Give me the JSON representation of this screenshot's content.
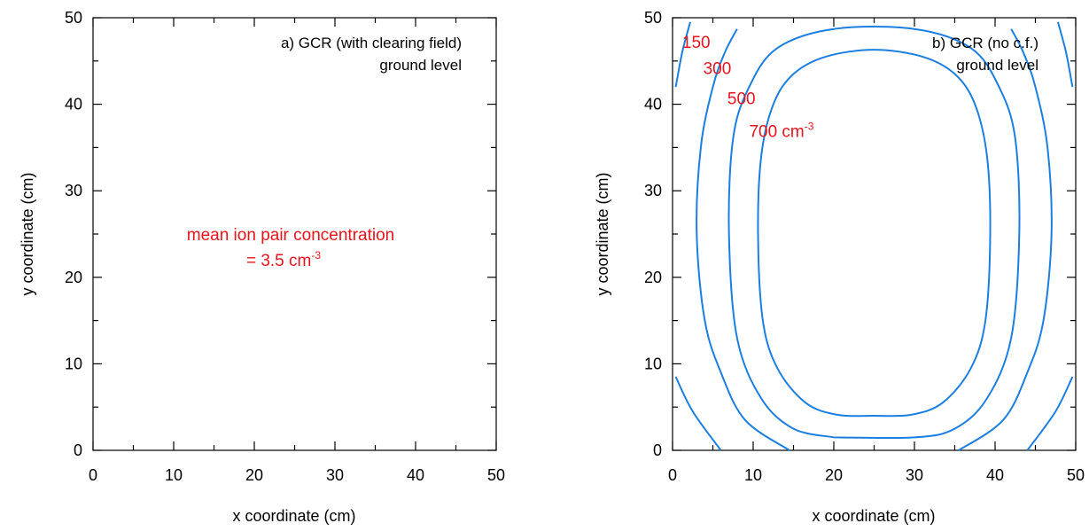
{
  "chart_data": [
    {
      "type": "contour",
      "xlabel": "x coordinate (cm)",
      "ylabel": "y coordinate (cm)",
      "xlim": [
        0,
        50
      ],
      "ylim": [
        0,
        50
      ],
      "xticks": [
        0,
        10,
        20,
        30,
        40,
        50
      ],
      "yticks": [
        0,
        10,
        20,
        30,
        40,
        50
      ],
      "title_lines": [
        "a) GCR (with clearing field)",
        "ground level"
      ],
      "annotation": {
        "line1": "mean ion pair concentration",
        "line2_prefix": "= 3.5 cm",
        "line2_sup": "-3"
      },
      "contours": []
    },
    {
      "type": "contour",
      "xlabel": "x coordinate (cm)",
      "ylabel": "y coordinate (cm)",
      "xlim": [
        0,
        50
      ],
      "ylim": [
        0,
        50
      ],
      "xticks": [
        0,
        10,
        20,
        30,
        40,
        50
      ],
      "yticks": [
        0,
        10,
        20,
        30,
        40,
        50
      ],
      "title_lines": [
        "b) GCR (no c.f.)",
        "ground level"
      ],
      "level_labels": [
        {
          "text": "150",
          "x": 1.2,
          "y": 46.5
        },
        {
          "text": "300",
          "x": 3.8,
          "y": 43.5
        },
        {
          "text": "500",
          "x": 6.8,
          "y": 40.0
        },
        {
          "text": "700 cm",
          "sup": "-3",
          "x": 9.5,
          "y": 36.2
        }
      ],
      "contour_color": "#1a7fe0",
      "contours": [
        {
          "level": 150,
          "points": [
            [
              0.4,
              42
            ],
            [
              1.2,
              46
            ],
            [
              2.2,
              49.5
            ]
          ]
        },
        {
          "level": 150,
          "points": [
            [
              47.8,
              49.5
            ],
            [
              48.8,
              46
            ],
            [
              49.6,
              42
            ]
          ]
        },
        {
          "level": 150,
          "points": [
            [
              0.4,
              8.5
            ],
            [
              2.5,
              4.5
            ],
            [
              6,
              0
            ]
          ]
        },
        {
          "level": 150,
          "points": [
            [
              44,
              0
            ],
            [
              47.5,
              4.5
            ],
            [
              49.6,
              8.5
            ]
          ]
        },
        {
          "level": 300,
          "points": [
            [
              14.5,
              0
            ],
            [
              9,
              3.5
            ],
            [
              6,
              9
            ],
            [
              4,
              15
            ],
            [
              3,
              25
            ],
            [
              3.5,
              35
            ],
            [
              5,
              42
            ],
            [
              6.5,
              46
            ],
            [
              8,
              48.7
            ]
          ]
        },
        {
          "level": 300,
          "points": [
            [
              35.5,
              0
            ],
            [
              41,
              3.5
            ],
            [
              44,
              9
            ],
            [
              46,
              15
            ],
            [
              47,
              25
            ],
            [
              46.5,
              35
            ],
            [
              45,
              42
            ],
            [
              43.5,
              46
            ],
            [
              42,
              48.7
            ]
          ]
        },
        {
          "level": 500,
          "points": [
            [
              20,
              1.5
            ],
            [
              30,
              1.5
            ],
            [
              35,
              2.5
            ],
            [
              39,
              6
            ],
            [
              42,
              13
            ],
            [
              43,
              25
            ],
            [
              42.5,
              36
            ],
            [
              40.5,
              42
            ],
            [
              37,
              46.5
            ],
            [
              30,
              48.7
            ],
            [
              20,
              48.7
            ],
            [
              13,
              46.5
            ],
            [
              9.5,
              42
            ],
            [
              7.5,
              36
            ],
            [
              7,
              25
            ],
            [
              8,
              13
            ],
            [
              11,
              6
            ],
            [
              15,
              2.5
            ],
            [
              20,
              1.5
            ]
          ]
        },
        {
          "level": 700,
          "points": [
            [
              25,
              4
            ],
            [
              29.5,
              4.1
            ],
            [
              33.5,
              5.5
            ],
            [
              37,
              9.5
            ],
            [
              38.8,
              15
            ],
            [
              39.4,
              25
            ],
            [
              39,
              34
            ],
            [
              37.5,
              40
            ],
            [
              35,
              43.5
            ],
            [
              31,
              45.5
            ],
            [
              25,
              46.3
            ],
            [
              19,
              45.5
            ],
            [
              15,
              43.5
            ],
            [
              12.5,
              40
            ],
            [
              11,
              34
            ],
            [
              10.6,
              25
            ],
            [
              11.2,
              15
            ],
            [
              13,
              9.5
            ],
            [
              16.5,
              5.5
            ],
            [
              20.5,
              4.1
            ],
            [
              25,
              4
            ]
          ]
        }
      ]
    }
  ]
}
